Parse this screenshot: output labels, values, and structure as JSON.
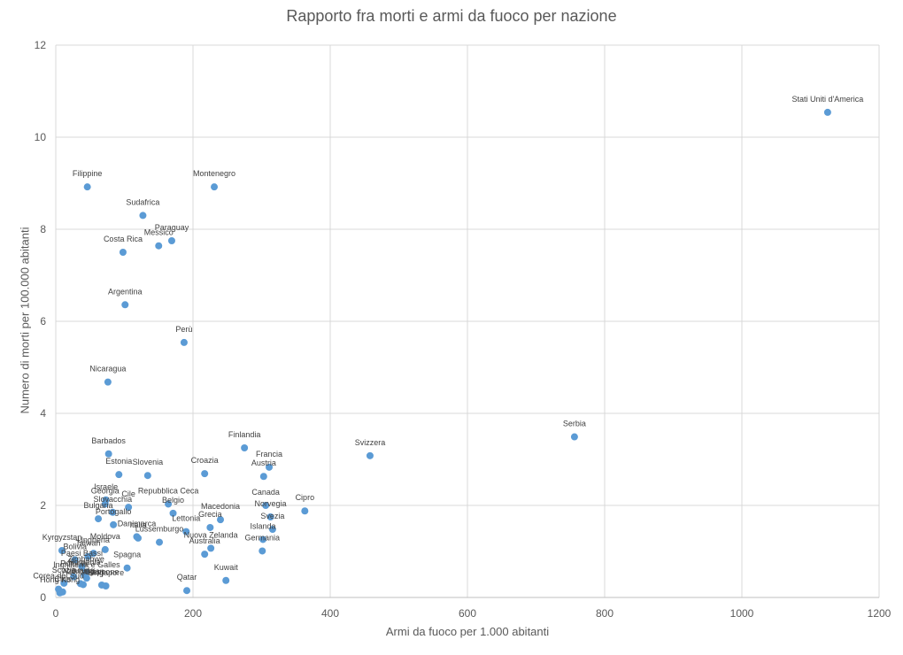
{
  "chart_data": {
    "type": "scatter",
    "title": "Rapporto fra morti e armi da fuoco per nazione",
    "xlabel": "Armi da fuoco per 1.000 abitanti",
    "ylabel": "Numero di morti per 100.000 abitanti",
    "xlim": [
      0,
      1200
    ],
    "ylim": [
      0,
      12
    ],
    "x_ticks": [
      "0",
      "200",
      "400",
      "600",
      "800",
      "1000",
      "1200"
    ],
    "y_ticks": [
      "0",
      "2",
      "4",
      "6",
      "8",
      "10",
      "12"
    ],
    "grid": true,
    "marker_color": "#5B9BD5",
    "points": [
      {
        "label": "Stati Uniti d'America",
        "x": 1125,
        "y": 10.54
      },
      {
        "label": "Filippine",
        "x": 46,
        "y": 8.92
      },
      {
        "label": "Montenegro",
        "x": 231,
        "y": 8.92
      },
      {
        "label": "Sudafrica",
        "x": 127,
        "y": 8.3
      },
      {
        "label": "Paraguay",
        "x": 169,
        "y": 7.75
      },
      {
        "label": "Messico",
        "x": 150,
        "y": 7.64
      },
      {
        "label": "Costa Rica",
        "x": 98,
        "y": 7.5
      },
      {
        "label": "Argentina",
        "x": 101,
        "y": 6.36
      },
      {
        "label": "Perù",
        "x": 187,
        "y": 5.54
      },
      {
        "label": "Nicaragua",
        "x": 76,
        "y": 4.68
      },
      {
        "label": "Serbia",
        "x": 756,
        "y": 3.49
      },
      {
        "label": "Finlandia",
        "x": 275,
        "y": 3.25
      },
      {
        "label": "Barbados",
        "x": 77,
        "y": 3.12
      },
      {
        "label": "Svizzera",
        "x": 458,
        "y": 3.08
      },
      {
        "label": "Francia",
        "x": 311,
        "y": 2.83
      },
      {
        "label": "Croazia",
        "x": 217,
        "y": 2.69
      },
      {
        "label": "Estonia",
        "x": 92,
        "y": 2.67
      },
      {
        "label": "Slovenia",
        "x": 134,
        "y": 2.65
      },
      {
        "label": "Austria",
        "x": 303,
        "y": 2.63
      },
      {
        "label": "Israele",
        "x": 73,
        "y": 2.12
      },
      {
        "label": "Georgia",
        "x": 72,
        "y": 2.03
      },
      {
        "label": "Cile",
        "x": 106,
        "y": 1.96
      },
      {
        "label": "Repubblica Ceca",
        "x": 164,
        "y": 2.03
      },
      {
        "label": "Canada",
        "x": 306,
        "y": 2.0
      },
      {
        "label": "Slovacchia",
        "x": 83,
        "y": 1.85
      },
      {
        "label": "Belgio",
        "x": 171,
        "y": 1.83
      },
      {
        "label": "Cipro",
        "x": 363,
        "y": 1.88
      },
      {
        "label": "Bulgaria",
        "x": 62,
        "y": 1.71
      },
      {
        "label": "Norvegia",
        "x": 313,
        "y": 1.75
      },
      {
        "label": "Macedonia",
        "x": 240,
        "y": 1.69
      },
      {
        "label": "Portogallo",
        "x": 84,
        "y": 1.58
      },
      {
        "label": "Grecia",
        "x": 225,
        "y": 1.52
      },
      {
        "label": "Svezia",
        "x": 316,
        "y": 1.48
      },
      {
        "label": "Lettonia",
        "x": 190,
        "y": 1.43
      },
      {
        "label": "Danimarca",
        "x": 118,
        "y": 1.32
      },
      {
        "label": "Italia",
        "x": 120,
        "y": 1.29
      },
      {
        "label": "Islanda",
        "x": 302,
        "y": 1.26
      },
      {
        "label": "Lussemburgo",
        "x": 151,
        "y": 1.2
      },
      {
        "label": "Nuova Zelanda",
        "x": 226,
        "y": 1.07
      },
      {
        "label": "Kyrgyzstan",
        "x": 9,
        "y": 1.02
      },
      {
        "label": "Moldova",
        "x": 72,
        "y": 1.04
      },
      {
        "label": "Germania",
        "x": 301,
        "y": 1.01
      },
      {
        "label": "Ungheria",
        "x": 55,
        "y": 0.96
      },
      {
        "label": "Australia",
        "x": 217,
        "y": 0.94
      },
      {
        "label": "Taiwan",
        "x": 47,
        "y": 0.89
      },
      {
        "label": "Bolivia",
        "x": 28,
        "y": 0.82
      },
      {
        "label": "Paesi Bassi",
        "x": 38,
        "y": 0.67
      },
      {
        "label": "Spagna",
        "x": 104,
        "y": 0.64
      },
      {
        "label": "Zimbabwe",
        "x": 44,
        "y": 0.55
      },
      {
        "label": "Romania",
        "x": 42,
        "y": 0.48
      },
      {
        "label": "Polonia",
        "x": 26,
        "y": 0.45
      },
      {
        "label": "Inghilterra e Galles",
        "x": 45,
        "y": 0.42
      },
      {
        "label": "Kuwait",
        "x": 248,
        "y": 0.37
      },
      {
        "label": "Scozia",
        "x": 12,
        "y": 0.31
      },
      {
        "label": "Lituania",
        "x": 36,
        "y": 0.3
      },
      {
        "label": "Azerbaigian",
        "x": 40,
        "y": 0.28
      },
      {
        "label": "Giappone",
        "x": 67,
        "y": 0.27
      },
      {
        "label": "Singapore",
        "x": 73,
        "y": 0.25
      },
      {
        "label": "Corea del Sud",
        "x": 4,
        "y": 0.18
      },
      {
        "label": "Qatar",
        "x": 191,
        "y": 0.15
      },
      {
        "label": "Cina",
        "x": 10,
        "y": 0.12
      },
      {
        "label": "Hong Kong",
        "x": 6,
        "y": 0.1
      }
    ]
  }
}
